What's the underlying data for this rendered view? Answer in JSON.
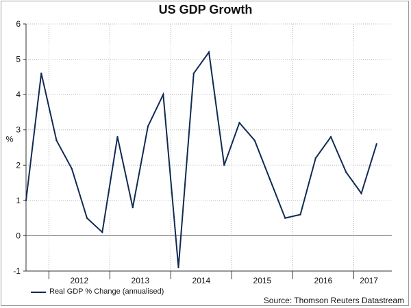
{
  "chart_data": {
    "type": "line",
    "title": "US GDP Growth",
    "ylabel": "%",
    "xlabel": "",
    "ylim": [
      -1,
      6
    ],
    "yticks": [
      -1,
      0,
      1,
      2,
      3,
      4,
      5,
      6
    ],
    "year_labels": [
      "2012",
      "2013",
      "2014",
      "2015",
      "2016",
      "2017"
    ],
    "year_label_positions": [
      2012.0,
      2013.0,
      2014.0,
      2015.0,
      2016.0,
      2016.75
    ],
    "year_gridlines": [
      2011.5,
      2012.5,
      2013.5,
      2014.5,
      2015.5,
      2016.5
    ],
    "xlim": [
      2011.125,
      2017.125
    ],
    "series": [
      {
        "name": "Real GDP % Change (annualised)",
        "color": "#0f2a52",
        "x": [
          2011.125,
          2011.375,
          2011.625,
          2011.875,
          2012.125,
          2012.375,
          2012.625,
          2012.875,
          2013.125,
          2013.375,
          2013.625,
          2013.875,
          2014.125,
          2014.375,
          2014.625,
          2014.875,
          2015.125,
          2015.375,
          2015.625,
          2015.875,
          2016.125,
          2016.375,
          2016.625,
          2016.875
        ],
        "values": [
          1.0,
          4.6,
          2.7,
          1.9,
          0.5,
          0.1,
          2.8,
          0.8,
          3.1,
          4.0,
          -0.9,
          4.6,
          5.2,
          2.0,
          3.2,
          2.7,
          1.6,
          0.5,
          0.6,
          2.2,
          2.8,
          1.8,
          1.2,
          2.6
        ]
      }
    ],
    "legend": "bottom-left",
    "source": "Source: Thomson Reuters Datastream"
  }
}
